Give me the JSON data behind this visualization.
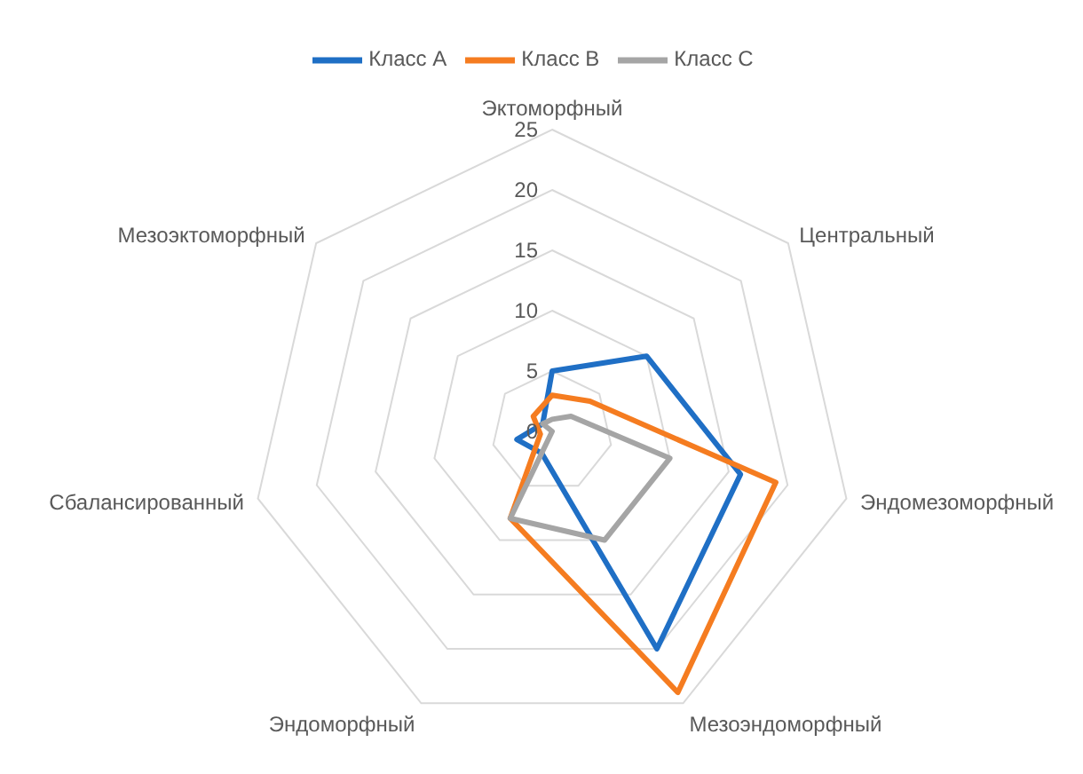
{
  "chart_data": {
    "type": "radar",
    "categories": [
      "Эктоморфный",
      "Центральный",
      "Эндомезоморфный",
      "Мезоэндоморфный",
      "Эндоморфный",
      "Сбалансированный",
      "Мезоэктоморфный"
    ],
    "series": [
      {
        "name": "Класс A",
        "color": "#1f6fc5",
        "values": [
          5,
          10,
          16,
          20,
          2,
          3,
          1
        ]
      },
      {
        "name": "Класс B",
        "color": "#f57c20",
        "values": [
          3,
          4,
          19,
          24,
          8,
          1,
          2
        ]
      },
      {
        "name": "Класс C",
        "color": "#a5a5a5",
        "values": [
          1,
          2,
          10,
          10,
          8,
          0,
          1
        ]
      }
    ],
    "ylim": [
      0,
      25
    ],
    "yticks": [
      0,
      5,
      10,
      15,
      20,
      25
    ],
    "grid": true,
    "legend": "top"
  }
}
